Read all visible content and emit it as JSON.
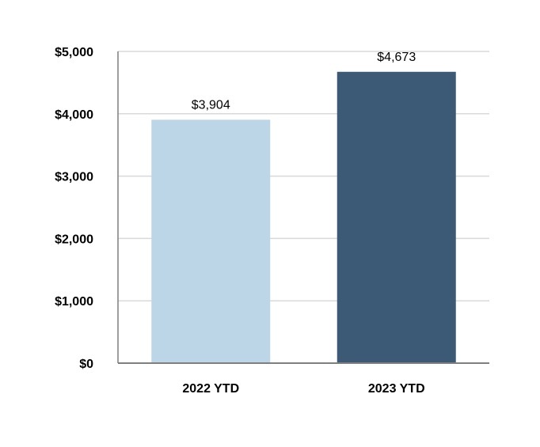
{
  "chart_data": {
    "type": "bar",
    "title": "",
    "xlabel": "",
    "ylabel": "",
    "categories": [
      "2022 YTD",
      "2023 YTD"
    ],
    "values": [
      3904,
      4673
    ],
    "data_labels": [
      "$3,904",
      "$4,673"
    ],
    "ylim": [
      0,
      5000
    ],
    "yticks": [
      0,
      1000,
      2000,
      3000,
      4000,
      5000
    ],
    "ytick_labels": [
      "$0",
      "$1,000",
      "$2,000",
      "$3,000",
      "$4,000",
      "$5,000"
    ],
    "grid": true,
    "legend": "none",
    "colors": [
      "#bcd6e8",
      "#3c5a76"
    ],
    "grid_color": "#d9d9d9",
    "axis_color": "#7f7f7f"
  }
}
